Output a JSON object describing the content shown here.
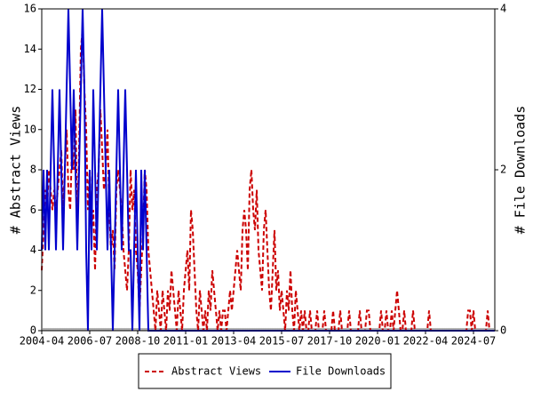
{
  "chart_data": {
    "type": "line",
    "x": [
      "2004-04",
      "2004-05",
      "2004-06",
      "2004-07",
      "2004-08",
      "2004-09",
      "2004-10",
      "2004-11",
      "2004-12",
      "2005-01",
      "2005-02",
      "2005-03",
      "2005-04",
      "2005-05",
      "2005-06",
      "2005-07",
      "2005-08",
      "2005-09",
      "2005-10",
      "2005-11",
      "2005-12",
      "2006-01",
      "2006-02",
      "2006-03",
      "2006-04",
      "2006-05",
      "2006-06",
      "2006-07",
      "2006-08",
      "2006-09",
      "2006-10",
      "2006-11",
      "2006-12",
      "2007-01",
      "2007-02",
      "2007-03",
      "2007-04",
      "2007-05",
      "2007-06",
      "2007-07",
      "2007-08",
      "2007-09",
      "2007-10",
      "2007-11",
      "2007-12",
      "2008-01",
      "2008-02",
      "2008-03",
      "2008-04",
      "2008-05",
      "2008-06",
      "2008-07",
      "2008-08",
      "2008-09",
      "2008-10",
      "2008-11",
      "2008-12",
      "2009-01",
      "2009-02",
      "2009-03",
      "2009-04",
      "2009-05",
      "2009-06",
      "2009-07",
      "2009-08",
      "2009-09",
      "2009-10",
      "2009-11",
      "2009-12",
      "2010-01",
      "2010-02",
      "2010-03",
      "2010-04",
      "2010-05",
      "2010-06",
      "2010-07",
      "2010-08",
      "2010-09",
      "2010-10",
      "2010-11",
      "2010-12",
      "2011-01",
      "2011-02",
      "2011-03",
      "2011-04",
      "2011-05",
      "2011-06",
      "2011-07",
      "2011-08",
      "2011-09",
      "2011-10",
      "2011-11",
      "2011-12",
      "2012-01",
      "2012-02",
      "2012-03",
      "2012-04",
      "2012-05",
      "2012-06",
      "2012-07",
      "2012-08",
      "2012-09",
      "2012-10",
      "2012-11",
      "2012-12",
      "2013-01",
      "2013-02",
      "2013-03",
      "2013-04",
      "2013-05",
      "2013-06",
      "2013-07",
      "2013-08",
      "2013-09",
      "2013-10",
      "2013-11",
      "2013-12",
      "2014-01",
      "2014-02",
      "2014-03",
      "2014-04",
      "2014-05",
      "2014-06",
      "2014-07",
      "2014-08",
      "2014-09",
      "2014-10",
      "2014-11",
      "2014-12",
      "2015-01",
      "2015-02",
      "2015-03",
      "2015-04",
      "2015-05",
      "2015-06",
      "2015-07",
      "2015-08",
      "2015-09",
      "2015-10",
      "2015-11",
      "2015-12",
      "2016-01",
      "2016-02",
      "2016-03",
      "2016-04",
      "2016-05",
      "2016-06",
      "2016-07",
      "2016-08",
      "2016-09",
      "2016-10",
      "2016-11",
      "2016-12",
      "2017-01",
      "2017-02",
      "2017-03",
      "2017-04",
      "2017-05",
      "2017-06",
      "2017-07",
      "2017-08",
      "2017-09",
      "2017-10",
      "2017-11",
      "2017-12",
      "2018-01",
      "2018-02",
      "2018-03",
      "2018-04",
      "2018-05",
      "2018-06",
      "2018-07",
      "2018-08",
      "2018-09",
      "2018-10",
      "2018-11",
      "2018-12",
      "2019-01",
      "2019-02",
      "2019-03",
      "2019-04",
      "2019-05",
      "2019-06",
      "2019-07",
      "2019-08",
      "2019-09",
      "2019-10",
      "2019-11",
      "2019-12",
      "2020-01",
      "2020-02",
      "2020-03",
      "2020-04",
      "2020-05",
      "2020-06",
      "2020-07",
      "2020-08",
      "2020-09",
      "2020-10",
      "2020-11",
      "2020-12",
      "2021-01",
      "2021-02",
      "2021-03",
      "2021-04",
      "2021-05",
      "2021-06",
      "2021-07",
      "2021-08",
      "2021-09",
      "2021-10",
      "2021-11",
      "2021-12",
      "2022-01",
      "2022-02",
      "2022-03",
      "2022-04",
      "2022-05",
      "2022-06",
      "2022-07",
      "2022-08",
      "2022-09",
      "2022-10",
      "2022-11",
      "2022-12",
      "2023-01",
      "2023-02",
      "2023-03",
      "2023-04",
      "2023-05",
      "2023-06",
      "2023-07",
      "2023-08",
      "2023-09",
      "2023-10",
      "2023-11",
      "2023-12",
      "2024-01",
      "2024-02",
      "2024-03",
      "2024-04",
      "2024-05",
      "2024-06",
      "2024-07",
      "2024-08",
      "2024-09",
      "2024-10",
      "2024-11",
      "2024-12",
      "2025-01",
      "2025-02",
      "2025-03",
      "2025-04",
      "2025-05",
      "2025-06",
      "2025-07"
    ],
    "xticks": [
      "2004-04",
      "2006-07",
      "2008-10",
      "2011-01",
      "2013-04",
      "2015-07",
      "2017-10",
      "2020-01",
      "2022-04",
      "2024-07"
    ],
    "ylabel": "# Abstract Views",
    "y2label": "# File Downloads",
    "ylim": [
      0,
      16
    ],
    "yticks": [
      0,
      2,
      4,
      6,
      8,
      10,
      12,
      14,
      16
    ],
    "y2lim": [
      0,
      4
    ],
    "y2ticks": [
      0,
      2,
      4
    ],
    "series": [
      {
        "name": "Abstract Views",
        "color": "#cc0000",
        "dashed": true,
        "values": [
          3,
          5,
          7,
          6,
          8,
          7,
          6,
          7,
          6,
          7,
          8,
          9,
          6,
          8,
          10,
          7,
          6,
          9,
          8,
          11,
          5,
          9,
          14,
          15,
          12,
          10,
          6,
          8,
          5,
          6,
          3,
          7,
          8,
          11,
          9,
          7,
          8,
          10,
          6,
          4,
          5,
          3,
          7,
          8,
          7,
          6,
          4,
          3,
          2,
          4,
          8,
          6,
          7,
          4,
          3,
          1,
          3,
          5,
          8,
          7,
          4,
          3,
          2,
          1,
          0,
          2,
          1,
          0,
          2,
          1,
          0,
          2,
          1,
          3,
          2,
          1,
          0,
          2,
          1,
          0,
          2,
          3,
          4,
          2,
          6,
          5,
          3,
          1,
          0,
          2,
          1,
          0,
          1,
          0,
          2,
          1,
          3,
          2,
          1,
          0,
          1,
          0,
          1,
          1,
          0,
          1,
          2,
          1,
          2,
          3,
          4,
          3,
          2,
          5,
          6,
          5,
          3,
          7,
          8,
          6,
          5,
          7,
          4,
          3,
          2,
          5,
          6,
          4,
          2,
          1,
          3,
          5,
          2,
          3,
          1,
          2,
          1,
          0,
          2,
          1,
          3,
          1,
          0,
          2,
          1,
          0,
          1,
          0,
          1,
          0,
          0,
          1,
          0,
          0,
          0,
          1,
          0,
          0,
          0,
          1,
          0,
          0,
          0,
          0,
          1,
          0,
          0,
          0,
          1,
          0,
          0,
          0,
          0,
          1,
          0,
          0,
          0,
          0,
          0,
          1,
          0,
          0,
          0,
          1,
          1,
          0,
          0,
          0,
          0,
          0,
          0,
          1,
          0,
          0,
          1,
          0,
          0,
          1,
          0,
          1,
          2,
          1,
          0,
          0,
          1,
          0,
          0,
          0,
          0,
          1,
          0,
          0,
          0,
          0,
          0,
          0,
          0,
          0,
          1,
          0,
          0,
          0,
          0,
          0,
          0,
          0,
          0,
          0,
          0,
          0,
          0,
          0,
          0,
          0,
          0,
          0,
          0,
          0,
          0,
          0,
          1,
          1,
          0,
          1,
          0,
          0,
          0,
          0,
          0,
          0,
          0,
          1,
          0,
          0,
          0,
          0
        ]
      },
      {
        "name": "File Downloads",
        "color": "#0000cc",
        "axis": "y2",
        "values": [
          1,
          2,
          1,
          2,
          1,
          2,
          3,
          2,
          1,
          2,
          3,
          2,
          1,
          2,
          3,
          4,
          3,
          2,
          3,
          2,
          1,
          2,
          3,
          4,
          3,
          1,
          0,
          2,
          1,
          3,
          2,
          1,
          2,
          3,
          4,
          3,
          2,
          1,
          2,
          1,
          0,
          1,
          2,
          3,
          2,
          1,
          2,
          3,
          2,
          1,
          1,
          0,
          1,
          2,
          1,
          0,
          2,
          1,
          2,
          1,
          0,
          0,
          0,
          0,
          0,
          0,
          0,
          0,
          0,
          0,
          0,
          0,
          0,
          0,
          0,
          0,
          0,
          0,
          0,
          0,
          0,
          0,
          0,
          0,
          0,
          0,
          0,
          0,
          0,
          0,
          0,
          0,
          0,
          0,
          0,
          0,
          0,
          0,
          0,
          0,
          0,
          0,
          0,
          0,
          0,
          0,
          0,
          0,
          0,
          0,
          0,
          0,
          0,
          0,
          0,
          0,
          0,
          0,
          0,
          0,
          0,
          0,
          0,
          0,
          0,
          0,
          0,
          0,
          0,
          0,
          0,
          0,
          0,
          0,
          0,
          0,
          0,
          0,
          0,
          0,
          0,
          0,
          0,
          0,
          0,
          0,
          0,
          0,
          0,
          0,
          0,
          0,
          0,
          0,
          0,
          0,
          0,
          0,
          0,
          0,
          0,
          0,
          0,
          0,
          0,
          0,
          0,
          0,
          0,
          0,
          0,
          0,
          0,
          0,
          0,
          0,
          0,
          0,
          0,
          0,
          0,
          0,
          0,
          0,
          0,
          0,
          0,
          0,
          0,
          0,
          0,
          0,
          0,
          0,
          0,
          0,
          0,
          0,
          0,
          0,
          0,
          0,
          0,
          0,
          0,
          0,
          0,
          0,
          0,
          0,
          0,
          0,
          0,
          0,
          0,
          0,
          0,
          0,
          0,
          0,
          0,
          0,
          0,
          0,
          0,
          0,
          0,
          0,
          0,
          0,
          0,
          0,
          0,
          0,
          0,
          0,
          0,
          0,
          0,
          0,
          0,
          0,
          0,
          0,
          0,
          0,
          0,
          0,
          0,
          0,
          0,
          0,
          0,
          0,
          0,
          0
        ]
      }
    ]
  }
}
